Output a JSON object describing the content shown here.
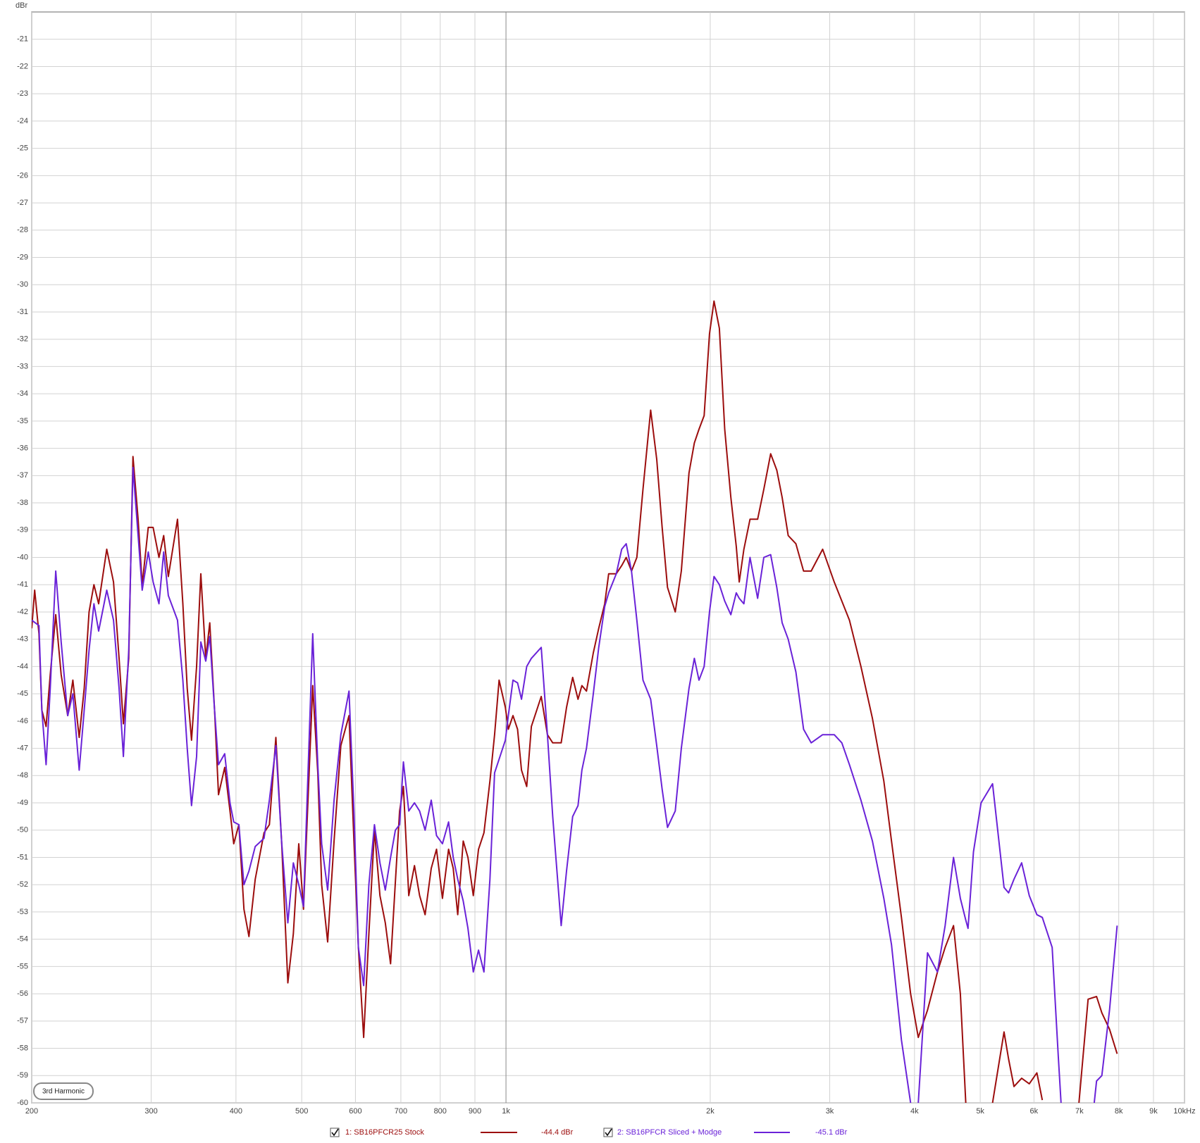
{
  "chart_data": {
    "type": "line",
    "y_label": "dBr",
    "annotation": "3rd Harmonic",
    "xscale": "log",
    "xlim": [
      200,
      10000
    ],
    "ylim": [
      -60,
      -20
    ],
    "grid": true,
    "xticks": [
      200,
      300,
      400,
      500,
      600,
      700,
      800,
      900,
      {
        "value": 1000,
        "label": "1k"
      },
      {
        "value": 2000,
        "label": "2k"
      },
      {
        "value": 3000,
        "label": "3k"
      },
      {
        "value": 4000,
        "label": "4k"
      },
      {
        "value": 5000,
        "label": "5k"
      },
      {
        "value": 6000,
        "label": "6k"
      },
      {
        "value": 7000,
        "label": "7k"
      },
      {
        "value": 8000,
        "label": "8k"
      },
      {
        "value": 9000,
        "label": "9k"
      },
      {
        "value": 10000,
        "label": "10kHz"
      }
    ],
    "yticks": [
      -60,
      -59,
      -58,
      -57,
      -56,
      -55,
      -54,
      -53,
      -52,
      -51,
      -50,
      -49,
      -48,
      -47,
      -46,
      -45,
      -44,
      -43,
      -42,
      -41,
      -40,
      -39,
      -38,
      -37,
      -36,
      -35,
      -34,
      -33,
      -32,
      -31,
      -30,
      -29,
      -28,
      -27,
      -26,
      -25,
      -24,
      -23,
      -22,
      -21
    ],
    "series": [
      {
        "name": "1: SB16PFCR25 Stock",
        "level": "-44.4 dBr",
        "color": "#9c0d0d",
        "x": [
          200,
          202,
          205,
          207,
          210,
          213,
          217,
          221,
          226,
          230,
          235,
          239,
          243,
          247,
          251,
          258,
          264,
          269,
          273,
          278,
          282,
          287,
          291,
          297,
          302,
          308,
          313,
          318,
          328,
          334,
          339,
          344,
          350,
          355,
          361,
          366,
          372,
          377,
          385,
          392,
          397,
          404,
          411,
          418,
          427,
          440,
          448,
          458,
          467,
          477,
          486,
          495,
          503,
          519,
          528,
          535,
          546,
          558,
          571,
          587,
          597,
          606,
          617,
          628,
          640,
          652,
          664,
          676,
          687,
          697,
          706,
          719,
          733,
          746,
          760,
          776,
          790,
          806,
          823,
          836,
          849,
          865,
          879,
          895,
          911,
          928,
          947,
          962,
          977,
          998,
          1008,
          1024,
          1040,
          1054,
          1073,
          1090,
          1127,
          1151,
          1172,
          1206,
          1228,
          1254,
          1277,
          1294,
          1314,
          1345,
          1370,
          1398,
          1417,
          1454,
          1481,
          1504,
          1531,
          1559,
          1592,
          1634,
          1668,
          1699,
          1730,
          1776,
          1813,
          1861,
          1895,
          1925,
          1959,
          1995,
          2026,
          2063,
          2101,
          2145,
          2185,
          2207,
          2242,
          2289,
          2349,
          2399,
          2455,
          2507,
          2553,
          2606,
          2675,
          2745,
          2817,
          2929,
          3046,
          3126,
          3208,
          3335,
          3468,
          3605,
          3700,
          3827,
          3948,
          4052,
          4181,
          4324,
          4438,
          4566,
          4674,
          4760,
          5000,
          5213,
          5420,
          5505,
          5606,
          5754,
          5905,
          6060,
          6172,
          6500,
          6989,
          7210,
          7419,
          7555,
          7753,
          7957
        ],
        "values": [
          -42.6,
          -41.2,
          -42.8,
          -45.6,
          -46.2,
          -44.3,
          -42.1,
          -44.3,
          -45.8,
          -44.5,
          -46.6,
          -44.8,
          -42.0,
          -41.0,
          -41.7,
          -39.7,
          -40.9,
          -43.7,
          -46.1,
          -43.7,
          -36.3,
          -38.6,
          -41.0,
          -38.9,
          -38.9,
          -40.0,
          -39.2,
          -40.7,
          -38.6,
          -41.7,
          -44.8,
          -46.7,
          -44.0,
          -40.6,
          -43.7,
          -42.4,
          -45.6,
          -48.7,
          -47.7,
          -49.3,
          -50.5,
          -49.8,
          -52.9,
          -53.9,
          -51.8,
          -50.1,
          -49.8,
          -46.6,
          -50.4,
          -55.6,
          -53.8,
          -50.5,
          -52.9,
          -44.7,
          -47.9,
          -52.0,
          -54.1,
          -50.4,
          -46.9,
          -45.8,
          -50.4,
          -54.3,
          -57.6,
          -53.8,
          -50.0,
          -52.4,
          -53.4,
          -54.9,
          -51.9,
          -49.3,
          -48.4,
          -52.4,
          -51.3,
          -52.4,
          -53.1,
          -51.4,
          -50.7,
          -52.5,
          -50.7,
          -51.4,
          -53.1,
          -50.4,
          -51.0,
          -52.4,
          -50.7,
          -50.1,
          -48.2,
          -46.5,
          -44.5,
          -45.5,
          -46.3,
          -45.8,
          -46.3,
          -47.8,
          -48.4,
          -46.2,
          -45.1,
          -46.5,
          -46.8,
          -46.8,
          -45.5,
          -44.4,
          -45.2,
          -44.7,
          -44.9,
          -43.5,
          -42.6,
          -41.7,
          -40.6,
          -40.6,
          -40.3,
          -40.0,
          -40.5,
          -40.0,
          -37.5,
          -34.6,
          -36.4,
          -38.9,
          -41.1,
          -42.0,
          -40.5,
          -36.9,
          -35.8,
          -35.3,
          -34.8,
          -31.8,
          -30.6,
          -31.6,
          -35.3,
          -37.8,
          -39.6,
          -40.9,
          -39.7,
          -38.6,
          -38.6,
          -37.5,
          -36.2,
          -36.8,
          -37.8,
          -39.2,
          -39.5,
          -40.5,
          -40.5,
          -39.7,
          -40.9,
          -41.6,
          -42.3,
          -44.0,
          -45.9,
          -48.2,
          -50.4,
          -53.2,
          -56.0,
          -57.6,
          -56.6,
          -55.2,
          -54.3,
          -53.5,
          -56.0,
          -60,
          null,
          -60,
          -57.4,
          -58.4,
          -59.4,
          -59.1,
          -59.3,
          -58.9,
          -59.9,
          null,
          -60,
          -56.2,
          -56.1,
          -56.7,
          -57.3,
          -58.2
        ]
      },
      {
        "name": "2: SB16PFCR Sliced + Modge",
        "level": "-45.1 dBr",
        "color": "#6a22d8",
        "x": [
          200,
          205,
          207,
          210,
          213,
          217,
          221,
          226,
          230,
          235,
          239,
          243,
          247,
          251,
          258,
          264,
          269,
          273,
          278,
          282,
          287,
          291,
          297,
          302,
          308,
          313,
          318,
          328,
          334,
          339,
          344,
          350,
          355,
          361,
          366,
          372,
          377,
          385,
          392,
          397,
          404,
          411,
          418,
          427,
          440,
          448,
          458,
          467,
          477,
          486,
          495,
          503,
          519,
          528,
          535,
          546,
          558,
          571,
          587,
          597,
          606,
          617,
          628,
          640,
          652,
          664,
          676,
          687,
          697,
          706,
          719,
          733,
          746,
          760,
          776,
          790,
          806,
          823,
          836,
          849,
          865,
          879,
          895,
          911,
          928,
          947,
          962,
          977,
          998,
          1008,
          1024,
          1040,
          1054,
          1073,
          1090,
          1127,
          1151,
          1172,
          1206,
          1228,
          1254,
          1277,
          1294,
          1314,
          1345,
          1370,
          1398,
          1417,
          1454,
          1481,
          1504,
          1531,
          1559,
          1592,
          1634,
          1668,
          1699,
          1730,
          1776,
          1813,
          1861,
          1895,
          1925,
          1959,
          1995,
          2026,
          2063,
          2101,
          2145,
          2185,
          2207,
          2242,
          2289,
          2349,
          2399,
          2455,
          2507,
          2553,
          2606,
          2675,
          2745,
          2817,
          2929,
          3046,
          3126,
          3208,
          3335,
          3468,
          3605,
          3700,
          3827,
          3948,
          4000,
          4052,
          4181,
          4324,
          4438,
          4566,
          4674,
          4760,
          4797,
          4886,
          5014,
          5213,
          5420,
          5505,
          5606,
          5754,
          5905,
          6060,
          6172,
          6382,
          6517,
          6577,
          6800,
          7362,
          7419,
          7555,
          7753,
          7957
        ],
        "values": [
          -42.3,
          -42.5,
          -45.6,
          -47.6,
          -44.8,
          -40.5,
          -43.1,
          -45.8,
          -45.0,
          -47.8,
          -45.6,
          -43.4,
          -41.7,
          -42.7,
          -41.2,
          -42.3,
          -44.8,
          -47.3,
          -43.4,
          -36.7,
          -39.2,
          -41.2,
          -39.8,
          -40.9,
          -41.7,
          -39.8,
          -41.4,
          -42.3,
          -44.5,
          -47.0,
          -49.1,
          -47.3,
          -43.1,
          -43.8,
          -42.9,
          -45.6,
          -47.6,
          -47.2,
          -49.0,
          -49.7,
          -49.8,
          -52.0,
          -51.5,
          -50.6,
          -50.3,
          -48.9,
          -46.9,
          -50.4,
          -53.4,
          -51.2,
          -52.0,
          -52.8,
          -42.8,
          -47.6,
          -50.5,
          -52.2,
          -48.9,
          -46.5,
          -44.9,
          -49.3,
          -54.3,
          -55.7,
          -52.0,
          -49.8,
          -51.2,
          -52.2,
          -51.0,
          -50.0,
          -49.8,
          -47.5,
          -49.3,
          -49.0,
          -49.3,
          -50.0,
          -48.9,
          -50.2,
          -50.5,
          -49.7,
          -51.0,
          -51.8,
          -52.6,
          -53.6,
          -55.2,
          -54.4,
          -55.2,
          -51.8,
          -47.9,
          -47.4,
          -46.7,
          -45.8,
          -44.5,
          -44.6,
          -45.2,
          -44.0,
          -43.7,
          -43.3,
          -46.5,
          -49.5,
          -53.5,
          -51.5,
          -49.5,
          -49.1,
          -47.8,
          -47.0,
          -45.0,
          -43.3,
          -41.8,
          -41.3,
          -40.6,
          -39.7,
          -39.5,
          -40.5,
          -42.3,
          -44.5,
          -45.2,
          -46.9,
          -48.5,
          -49.9,
          -49.3,
          -47.0,
          -44.8,
          -43.7,
          -44.5,
          -44.0,
          -42.0,
          -40.7,
          -41.0,
          -41.6,
          -42.1,
          -41.3,
          -41.5,
          -41.7,
          -40.0,
          -41.5,
          -40.0,
          -39.9,
          -41.1,
          -42.4,
          -43.0,
          -44.2,
          -46.3,
          -46.8,
          -46.5,
          -46.5,
          -46.8,
          -47.6,
          -48.9,
          -50.4,
          -52.5,
          -54.2,
          -57.7,
          -60,
          null,
          -60,
          -54.5,
          -55.2,
          -53.5,
          -51.0,
          -52.5,
          -53.3,
          -53.6,
          -50.8,
          -49.0,
          -48.3,
          -52.1,
          -52.3,
          -51.8,
          -51.2,
          -52.4,
          -53.1,
          -53.2,
          -54.3,
          -58.3,
          -60,
          null,
          -60,
          -59.2,
          -59.0,
          -56.6,
          -53.5
        ]
      }
    ]
  }
}
